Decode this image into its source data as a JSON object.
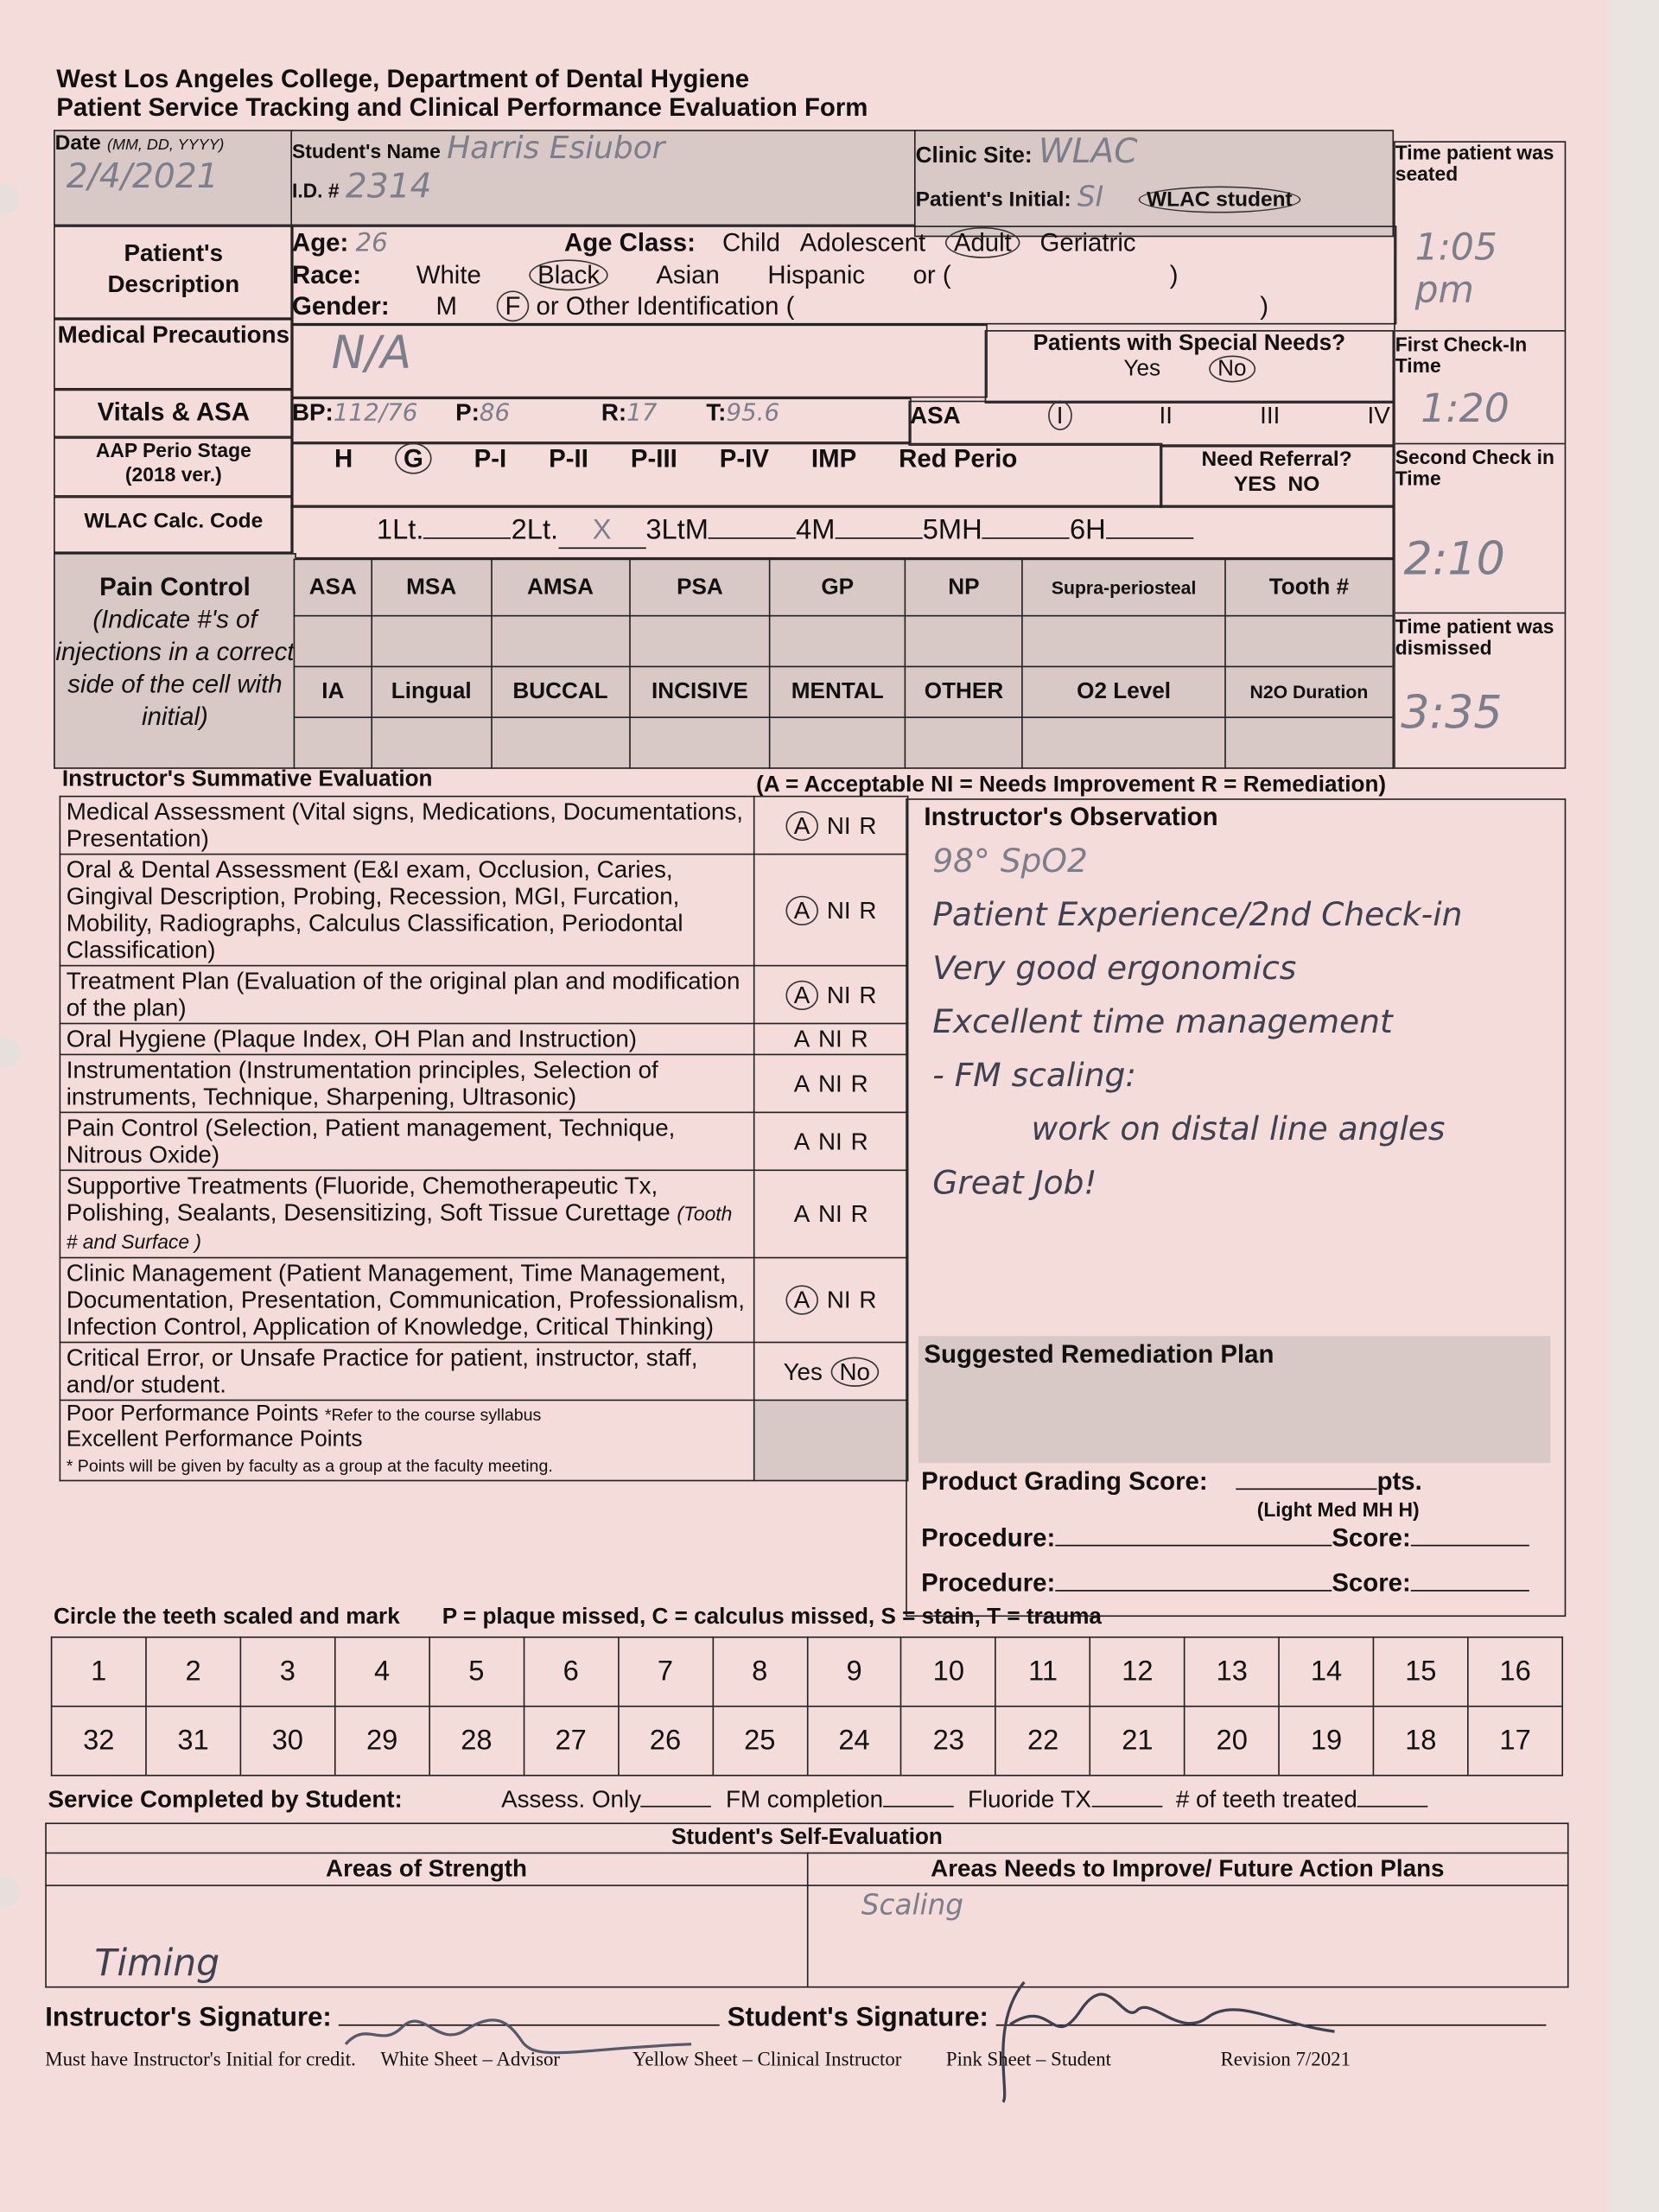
{
  "header": {
    "line1": "West Los Angeles College, Department of Dental Hygiene",
    "line2": "Patient Service Tracking and Clinical Performance Evaluation Form"
  },
  "top": {
    "date_label": "Date",
    "date_format": "(MM, DD, YYYY)",
    "date_value": "2/4/2021",
    "student_name_label": "Student's Name",
    "student_name_value": "Harris Esiubor",
    "id_label": "I.D. #",
    "id_value": "2314",
    "clinic_site_label": "Clinic Site:",
    "clinic_site_value": "WLAC",
    "patient_initial_label": "Patient's Initial:",
    "patient_initial_value": "SI",
    "wlac_student": "WLAC student",
    "time_seated_label": "Time patient was seated",
    "time_seated_value": "1:05 pm",
    "first_check_label": "First Check-In Time",
    "first_check_value": "1:20",
    "second_check_label": "Second Check in Time",
    "second_check_value": "2:10",
    "dismissed_label": "Time patient was dismissed",
    "dismissed_value": "3:35"
  },
  "patient": {
    "label": "Patient's Description",
    "age_label": "Age:",
    "age_value": "26",
    "age_class_label": "Age Class:",
    "age_classes": [
      "Child",
      "Adolescent",
      "Adult",
      "Geriatric"
    ],
    "age_class_selected": "Adult",
    "race_label": "Race:",
    "races": [
      "White",
      "Black",
      "Asian",
      "Hispanic",
      "or ("
    ],
    "race_selected": "Black",
    "race_close": ")",
    "gender_label": "Gender:",
    "genders": [
      "M",
      "F"
    ],
    "gender_selected": "F",
    "gender_other": "or Other Identification (",
    "gender_close": ")"
  },
  "medical": {
    "label": "Medical Precautions",
    "value": "N/A",
    "special_needs_label": "Patients with Special Needs?",
    "yes": "Yes",
    "no": "No",
    "selected": "No"
  },
  "vitals": {
    "label": "Vitals & ASA",
    "bp_label": "BP:",
    "bp_value": "112/76",
    "p_label": "P:",
    "p_value": "86",
    "r_label": "R:",
    "r_value": "17",
    "t_label": "T:",
    "t_value": "95.6",
    "asa_label": "ASA",
    "asa_options": [
      "I",
      "II",
      "III",
      "IV"
    ],
    "asa_selected": "I"
  },
  "perio": {
    "label": "AAP Perio Stage",
    "sub": "(2018 ver.)",
    "options": [
      "H",
      "G",
      "P-I",
      "P-II",
      "P-III",
      "P-IV",
      "IMP",
      "Red Perio"
    ],
    "selected": "G",
    "referral_label": "Need Referral?",
    "referral_yes": "YES",
    "referral_no": "NO"
  },
  "calc": {
    "label": "WLAC Calc. Code",
    "codes": [
      "1Lt.",
      "2Lt.",
      "3LtM",
      "4M",
      "5MH",
      "6H"
    ],
    "marked": "2Lt.",
    "mark": "X"
  },
  "pain": {
    "label": "Pain Control",
    "note": "(Indicate #'s of injections in a correct side of the cell with initial)",
    "row1": [
      "ASA",
      "MSA",
      "AMSA",
      "PSA",
      "GP",
      "NP",
      "Supra-periosteal",
      "Tooth #"
    ],
    "row2": [
      "IA",
      "Lingual",
      "BUCCAL",
      "INCISIVE",
      "MENTAL",
      "OTHER",
      "O2 Level",
      "N2O Duration"
    ]
  },
  "eval": {
    "title": "Instructor's Summative Evaluation",
    "legend": "(A = Acceptable   NI = Needs Improvement   R = Remediation)",
    "rows": [
      {
        "text": "Medical Assessment (Vital signs, Medications, Documentations, Presentation)",
        "grade": "A NI R",
        "circled": "A"
      },
      {
        "text": "Oral & Dental Assessment (E&I exam, Occlusion, Caries, Gingival Description, Probing, Recession, MGI, Furcation, Mobility, Radiographs, Calculus Classification, Periodontal Classification)",
        "grade": "A NI R",
        "circled": "A"
      },
      {
        "text": "Treatment Plan (Evaluation of the original plan and modification of the plan)",
        "grade": "A NI R",
        "circled": "A"
      },
      {
        "text": "Oral Hygiene (Plaque Index, OH Plan and Instruction)",
        "grade": "A NI R",
        "circled": ""
      },
      {
        "text": "Instrumentation (Instrumentation principles, Selection of instruments, Technique, Sharpening, Ultrasonic)",
        "grade": "A NI R",
        "circled": ""
      },
      {
        "text": "Pain Control (Selection, Patient management, Technique, Nitrous Oxide)",
        "grade": "A NI R",
        "circled": ""
      },
      {
        "text": "Supportive Treatments (Fluoride, Chemotherapeutic Tx, Polishing, Sealants, Desensitizing, Soft Tissue Curettage",
        "extra": "(Tooth # and Surface                                )",
        "grade": "A NI R",
        "circled": ""
      },
      {
        "text": "Clinic Management (Patient Management, Time Management, Documentation, Presentation, Communication, Professionalism, Infection Control, Application of Knowledge, Critical Thinking)",
        "grade": "A NI R",
        "circled": "A"
      },
      {
        "text": "Critical Error, or Unsafe Practice for patient, instructor, staff, and/or student.",
        "grade": "Yes  No",
        "circled": "No"
      }
    ],
    "poor_points": "Poor Performance Points",
    "poor_note": "*Refer to the course syllabus",
    "excellent_points": "Excellent Performance Points",
    "points_note": "* Points will be given by faculty as a group at the faculty meeting.",
    "observation_title": "Instructor's Observation",
    "observation_lines": [
      "98° SpO2",
      "Patient Experience/2nd Check-in",
      "Very good ergonomics",
      "Excellent time management",
      "- FM scaling:",
      "work on distal line angles",
      "Great Job!"
    ],
    "remediation_title": "Suggested Remediation Plan",
    "grading_label": "Product Grading Score:",
    "pts": "pts.",
    "grading_levels": "(Light    Med     MH    H)",
    "procedure_label": "Procedure:",
    "score_label": "Score:"
  },
  "teeth": {
    "title": "Circle the teeth scaled and mark",
    "legend": "P = plaque missed, C = calculus missed, S = stain, T = trauma",
    "upper": [
      "1",
      "2",
      "3",
      "4",
      "5",
      "6",
      "7",
      "8",
      "9",
      "10",
      "11",
      "12",
      "13",
      "14",
      "15",
      "16"
    ],
    "lower": [
      "32",
      "31",
      "30",
      "29",
      "28",
      "27",
      "26",
      "25",
      "24",
      "23",
      "22",
      "21",
      "20",
      "19",
      "18",
      "17"
    ]
  },
  "service": {
    "label": "Service Completed by Student:",
    "items": [
      "Assess. Only",
      "FM completion",
      "Fluoride TX",
      "# of teeth treated"
    ]
  },
  "self_eval": {
    "title": "Student's Self-Evaluation",
    "strength_label": "Areas of Strength",
    "improve_label": "Areas Needs to Improve/ Future Action Plans",
    "strength_value": "Timing",
    "improve_value": "Scaling"
  },
  "signatures": {
    "instructor_label": "Instructor's Signature:",
    "student_label": "Student's Signature:"
  },
  "footer": {
    "note": "Must have Instructor's Initial for credit.",
    "white": "White Sheet – Advisor",
    "yellow": "Yellow Sheet – Clinical Instructor",
    "pink": "Pink Sheet – Student",
    "revision": "Revision 7/2021"
  }
}
